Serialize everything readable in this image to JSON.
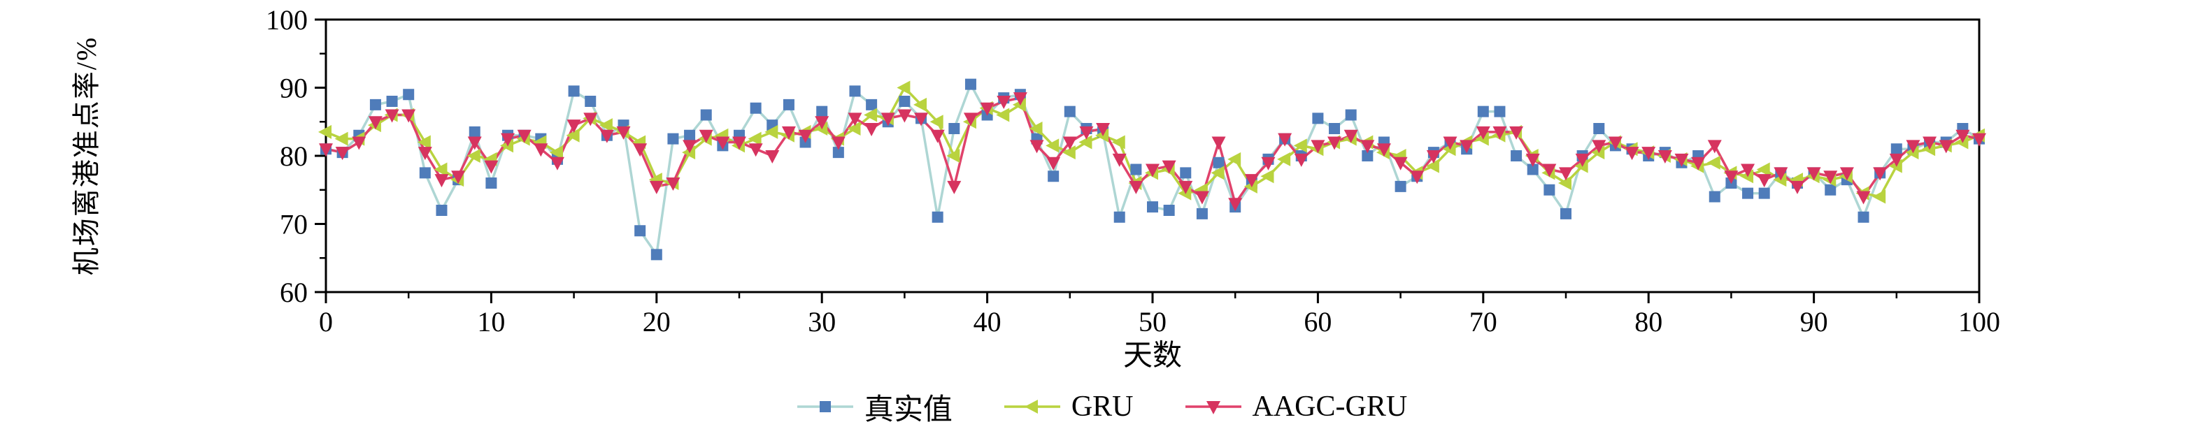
{
  "chart_data": {
    "type": "line",
    "title": "",
    "xlabel": "天数",
    "ylabel": "机场离港准点率/%",
    "xlim": [
      0,
      100
    ],
    "ylim": [
      60,
      100
    ],
    "x_ticks": [
      0,
      10,
      20,
      30,
      40,
      50,
      60,
      70,
      80,
      90,
      100
    ],
    "y_ticks": [
      60,
      70,
      80,
      90,
      100
    ],
    "x_minor_step": 5,
    "y_minor_step": 5,
    "x_start": 0,
    "x_step": 1,
    "grid": false,
    "legend_position": "bottom",
    "axis_color": "#000000",
    "series": [
      {
        "name": "真实值",
        "line_color": "#aed6d4",
        "marker": "square",
        "marker_color": "#4f7cba",
        "values": [
          81,
          80.5,
          83,
          87.5,
          88,
          89,
          77.5,
          72,
          76.5,
          83.5,
          76,
          83,
          83,
          82.5,
          79.5,
          89.5,
          88,
          83,
          84.5,
          69,
          65.5,
          82.5,
          83,
          86,
          81.5,
          83,
          87,
          84.5,
          87.5,
          82,
          86.5,
          80.5,
          89.5,
          87.5,
          85,
          88,
          85.5,
          71,
          84,
          90.5,
          86,
          88.5,
          89,
          82.5,
          77,
          86.5,
          84,
          83.5,
          71,
          78,
          72.5,
          72,
          77.5,
          71.5,
          79,
          72.5,
          76,
          79.5,
          82.5,
          80,
          85.5,
          84,
          86,
          80,
          82,
          75.5,
          77,
          80.5,
          82,
          81,
          86.5,
          86.5,
          80,
          78,
          75,
          71.5,
          80,
          84,
          81.5,
          81,
          80,
          80.5,
          79,
          80,
          74,
          76,
          74.5,
          74.5,
          77.5,
          76,
          77.5,
          75,
          76.5,
          71,
          77.5,
          81,
          81,
          82,
          82,
          84,
          82.5
        ]
      },
      {
        "name": "GRU",
        "line_color": "#b9d33f",
        "marker": "triangle-left",
        "marker_color": "#b9d33f",
        "values": [
          83.5,
          82.5,
          82.5,
          84.5,
          86,
          86,
          82,
          78,
          76.5,
          80,
          79.5,
          81.5,
          82.5,
          82,
          80.5,
          83,
          85.5,
          84.5,
          83.5,
          82,
          76.5,
          76,
          80.5,
          82.5,
          83,
          81.5,
          82.5,
          83.5,
          83,
          83.5,
          84,
          82.5,
          84,
          86,
          85.5,
          90,
          87.5,
          85,
          80,
          85,
          87,
          86,
          87.5,
          84,
          81.5,
          80.5,
          82,
          83,
          82,
          76,
          77.5,
          78,
          74.5,
          75,
          77.5,
          79.5,
          75.5,
          77,
          79.5,
          81.5,
          81,
          82,
          82.5,
          82,
          80.5,
          80,
          77.5,
          78.5,
          81,
          82,
          82.5,
          83,
          83.5,
          80,
          77.5,
          76,
          78.5,
          80.5,
          82,
          81,
          80.5,
          80,
          79.5,
          78.5,
          79,
          77.5,
          77,
          78,
          76.5,
          76.5,
          77,
          76.5,
          77,
          74.5,
          74,
          78.5,
          80.5,
          81,
          81.5,
          82,
          83
        ]
      },
      {
        "name": "AAGC-GRU",
        "line_color": "#e0426b",
        "marker": "triangle-down",
        "marker_color": "#d6335f",
        "values": [
          81,
          80.5,
          82,
          85,
          86,
          86,
          80.5,
          76.5,
          77,
          82,
          78.5,
          82.5,
          83,
          81,
          79,
          84.5,
          85.5,
          83,
          83.5,
          81,
          75.5,
          76,
          81.5,
          83,
          82,
          82,
          81,
          80,
          83.5,
          83,
          85,
          82,
          85.5,
          84,
          85.5,
          86,
          85.5,
          83,
          75.5,
          85.5,
          87,
          88,
          88.5,
          81.5,
          79,
          82,
          83.5,
          84,
          79.5,
          75.5,
          78,
          78.5,
          75.5,
          74,
          82,
          73,
          76.5,
          79,
          82.5,
          79.5,
          81.5,
          82,
          83,
          81.5,
          81,
          79,
          77,
          80,
          82,
          81.5,
          83.5,
          83.5,
          83.5,
          79.5,
          78,
          77.5,
          79.5,
          81.5,
          82,
          80.5,
          80.5,
          80,
          79.5,
          79,
          81.5,
          77,
          78,
          76.5,
          77.5,
          75.5,
          77.5,
          77,
          77.5,
          74,
          77.5,
          79.5,
          81.5,
          82,
          81.5,
          83,
          82.5
        ]
      }
    ]
  }
}
